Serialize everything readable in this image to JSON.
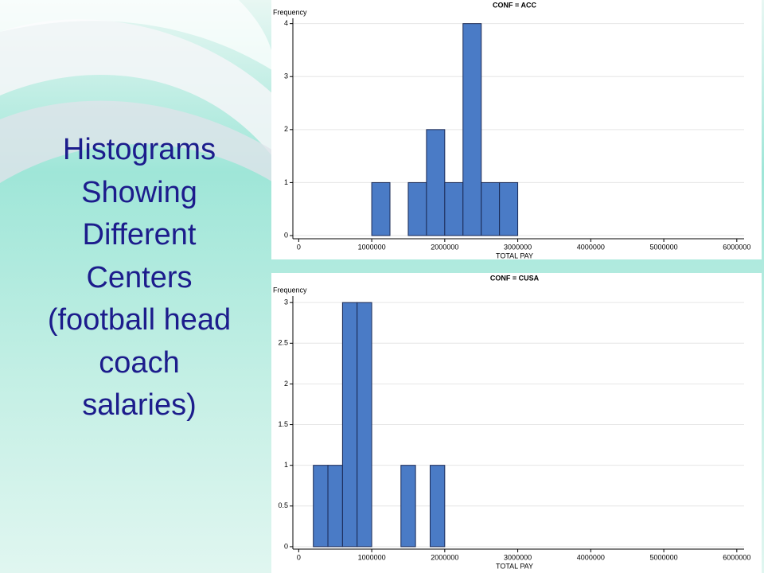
{
  "slide": {
    "title_lines": [
      "Histograms",
      "Showing",
      "Different",
      "Centers",
      "(football head",
      "coach",
      "salaries)"
    ]
  },
  "chart_data": [
    {
      "type": "histogram",
      "title": "CONF = ACC",
      "y_label": "Frequency",
      "x_label": "TOTAL PAY",
      "color": "#4a7bc6",
      "bins": [
        1000000,
        1250000,
        1500000,
        1750000,
        2000000,
        2250000,
        2500000,
        2750000,
        3000000
      ],
      "values": [
        1,
        0,
        1,
        2,
        1,
        4,
        1,
        1
      ],
      "xlim": [
        -80000,
        6100000
      ],
      "xticks": [
        0,
        1000000,
        2000000,
        3000000,
        4000000,
        5000000,
        6000000
      ],
      "ylim": [
        -0.06,
        4.1
      ],
      "yticks": [
        0,
        1,
        2,
        3,
        4
      ],
      "grid": true
    },
    {
      "type": "histogram",
      "title": "CONF = CUSA",
      "y_label": "Frequency",
      "x_label": "TOTAL PAY",
      "color": "#4a7bc6",
      "bins": [
        200000,
        400000,
        600000,
        800000,
        1000000,
        1200000,
        1400000,
        1600000,
        1800000,
        2000000
      ],
      "values": [
        1,
        1,
        3,
        3,
        0,
        0,
        1,
        0,
        1
      ],
      "xlim": [
        -80000,
        6100000
      ],
      "xticks": [
        0,
        1000000,
        2000000,
        3000000,
        4000000,
        5000000,
        6000000
      ],
      "ylim": [
        -0.03,
        3.08
      ],
      "yticks": [
        0,
        0.5,
        1,
        1.5,
        2,
        2.5,
        3
      ],
      "grid": true
    }
  ]
}
